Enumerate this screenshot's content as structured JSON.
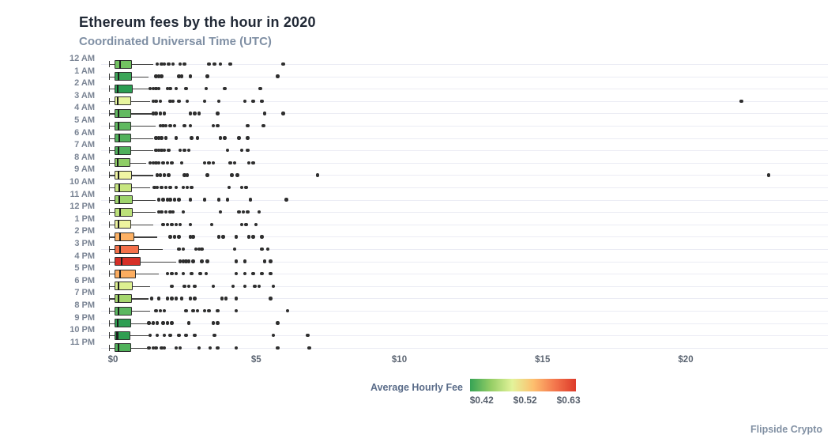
{
  "header": {
    "title": "Ethereum fees by the hour in 2020",
    "subtitle": "Coordinated Universal Time (UTC)"
  },
  "attribution": "Flipside Crypto",
  "legend": {
    "label": "Average Hourly Fee",
    "tick_labels": [
      "$0.42",
      "$0.52",
      "$0.63"
    ],
    "tick_positions_pct": [
      11,
      52,
      93
    ],
    "gradient_stops": [
      "#36a355",
      "#96ce66",
      "#e3f39a",
      "#fdbe6e",
      "#f4774d",
      "#dd3b2a"
    ]
  },
  "axes": {
    "x_ticks": [
      {
        "label": "$0",
        "value": 0
      },
      {
        "label": "$5",
        "value": 5
      },
      {
        "label": "$10",
        "value": 10
      },
      {
        "label": "$15",
        "value": 15
      },
      {
        "label": "$20",
        "value": 20
      }
    ],
    "x_unit": "USD"
  },
  "chart_data": {
    "type": "box",
    "orientation": "horizontal",
    "title": "Ethereum fees by the hour in 2020",
    "subtitle": "Coordinated Universal Time (UTC)",
    "color_encoding": "box fill encodes Average Hourly Fee, green $0.42 (low) to red $0.63 (high)",
    "x_range_dollars": [
      -0.4,
      24.9
    ],
    "grid": "horizontal",
    "rows": [
      {
        "hour": "12 AM",
        "color": "#72C261",
        "low": -0.15,
        "q1": 0.05,
        "median": 0.25,
        "q3": 0.67,
        "high": 1.4,
        "outliers": [
          1.55,
          1.7,
          1.8,
          1.95,
          2.1,
          2.35,
          2.5,
          3.35,
          3.55,
          3.75,
          4.1,
          5.95
        ]
      },
      {
        "hour": "1 AM",
        "color": "#3BA658",
        "low": -0.15,
        "q1": 0.05,
        "median": 0.2,
        "q3": 0.67,
        "high": 1.25,
        "outliers": [
          1.5,
          1.6,
          1.7,
          2.3,
          2.4,
          2.7,
          3.3,
          5.75
        ]
      },
      {
        "hour": "2 AM",
        "color": "#2A9D52",
        "low": -0.15,
        "q1": 0.05,
        "median": 0.17,
        "q3": 0.7,
        "high": 1.4,
        "outliers": [
          1.3,
          1.4,
          1.5,
          1.6,
          1.9,
          2.0,
          2.2,
          2.55,
          3.25,
          3.9,
          5.15
        ]
      },
      {
        "hour": "3 AM",
        "color": "#E7F59E",
        "low": -0.15,
        "q1": 0.05,
        "median": 0.17,
        "q3": 0.64,
        "high": 1.3,
        "outliers": [
          1.4,
          1.5,
          1.65,
          2.0,
          2.1,
          2.3,
          2.6,
          3.2,
          3.7,
          4.6,
          4.9,
          5.2,
          21.95
        ]
      },
      {
        "hour": "4 AM",
        "color": "#62BA60",
        "low": -0.15,
        "q1": 0.05,
        "median": 0.2,
        "q3": 0.64,
        "high": 1.4,
        "outliers": [
          1.4,
          1.5,
          1.65,
          1.8,
          2.7,
          2.85,
          3.0,
          3.65,
          5.3,
          5.95
        ]
      },
      {
        "hour": "5 AM",
        "color": "#5FB95F",
        "low": -0.15,
        "q1": 0.05,
        "median": 0.2,
        "q3": 0.64,
        "high": 1.5,
        "outliers": [
          1.65,
          1.75,
          1.85,
          2.0,
          2.15,
          2.5,
          2.7,
          3.5,
          3.65,
          4.7,
          5.25
        ]
      },
      {
        "hour": "6 AM",
        "color": "#52B25C",
        "low": -0.15,
        "q1": 0.05,
        "median": 0.22,
        "q3": 0.64,
        "high": 1.4,
        "outliers": [
          1.5,
          1.6,
          1.7,
          1.85,
          2.2,
          2.75,
          2.95,
          3.75,
          3.9,
          4.4,
          4.7
        ]
      },
      {
        "hour": "7 AM",
        "color": "#4FB05B",
        "low": -0.15,
        "q1": 0.05,
        "median": 0.2,
        "q3": 0.64,
        "high": 1.4,
        "outliers": [
          1.5,
          1.6,
          1.7,
          1.8,
          1.95,
          2.35,
          2.5,
          2.65,
          4.0,
          4.5,
          4.7
        ]
      },
      {
        "hour": "8 AM",
        "color": "#8FCE66",
        "low": -0.15,
        "q1": 0.05,
        "median": 0.17,
        "q3": 0.6,
        "high": 1.15,
        "outliers": [
          1.3,
          1.4,
          1.5,
          1.6,
          1.75,
          1.9,
          2.05,
          2.4,
          3.2,
          3.35,
          3.5,
          4.1,
          4.25,
          4.75,
          4.9
        ]
      },
      {
        "hour": "9 AM",
        "color": "#F0F5A3",
        "low": -0.15,
        "q1": 0.05,
        "median": 0.2,
        "q3": 0.67,
        "high": 1.4,
        "outliers": [
          1.55,
          1.65,
          1.8,
          1.95,
          2.5,
          2.6,
          3.3,
          4.15,
          4.35,
          7.15,
          22.9
        ]
      },
      {
        "hour": "10 AM",
        "color": "#C7E680",
        "low": -0.15,
        "q1": 0.05,
        "median": 0.22,
        "q3": 0.67,
        "high": 1.3,
        "outliers": [
          1.45,
          1.55,
          1.7,
          1.85,
          2.0,
          2.2,
          2.45,
          2.6,
          2.75,
          4.05,
          4.5,
          4.65
        ]
      },
      {
        "hour": "11 AM",
        "color": "#9ED46C",
        "low": -0.15,
        "q1": 0.05,
        "median": 0.22,
        "q3": 0.7,
        "high": 1.5,
        "outliers": [
          1.6,
          1.75,
          1.9,
          2.0,
          2.15,
          2.3,
          2.7,
          3.2,
          3.7,
          4.0,
          4.8,
          6.05
        ]
      },
      {
        "hour": "12 PM",
        "color": "#BCE17A",
        "low": -0.15,
        "q1": 0.05,
        "median": 0.25,
        "q3": 0.7,
        "high": 1.5,
        "outliers": [
          1.6,
          1.7,
          1.85,
          2.0,
          2.1,
          2.45,
          3.75,
          4.4,
          4.55,
          4.7,
          5.1
        ]
      },
      {
        "hour": "1 PM",
        "color": "#EEF49F",
        "low": -0.15,
        "q1": 0.05,
        "median": 0.2,
        "q3": 0.64,
        "high": 1.4,
        "outliers": [
          1.75,
          1.9,
          2.05,
          2.2,
          2.35,
          2.7,
          3.45,
          4.5,
          4.65,
          5.0
        ]
      },
      {
        "hour": "2 PM",
        "color": "#FDB164",
        "low": -0.15,
        "q1": 0.05,
        "median": 0.25,
        "q3": 0.75,
        "high": 1.55,
        "outliers": [
          2.0,
          2.15,
          2.3,
          2.7,
          2.8,
          3.7,
          3.85,
          4.3,
          4.75,
          4.9,
          5.2
        ]
      },
      {
        "hour": "3 PM",
        "color": "#F4704A",
        "low": -0.15,
        "q1": 0.05,
        "median": 0.25,
        "q3": 0.9,
        "high": 1.75,
        "outliers": [
          2.3,
          2.45,
          2.9,
          3.0,
          3.1,
          4.25,
          5.2,
          5.4
        ]
      },
      {
        "hour": "4 PM",
        "color": "#D62F27",
        "low": -0.15,
        "q1": 0.05,
        "median": 0.3,
        "q3": 0.97,
        "high": 2.2,
        "outliers": [
          2.35,
          2.45,
          2.55,
          2.65,
          2.8,
          3.1,
          3.3,
          4.3,
          4.6,
          5.3,
          5.5
        ]
      },
      {
        "hour": "5 PM",
        "color": "#FCAD60",
        "low": -0.15,
        "q1": 0.05,
        "median": 0.25,
        "q3": 0.8,
        "high": 1.6,
        "outliers": [
          1.9,
          2.05,
          2.2,
          2.45,
          2.75,
          3.05,
          3.25,
          4.3,
          4.6,
          4.9,
          5.2,
          5.5
        ]
      },
      {
        "hour": "6 PM",
        "color": "#DDF091",
        "low": -0.15,
        "q1": 0.05,
        "median": 0.2,
        "q3": 0.7,
        "high": 1.3,
        "outliers": [
          2.05,
          2.5,
          2.65,
          2.85,
          3.5,
          4.2,
          4.6,
          4.95,
          5.1,
          5.6
        ]
      },
      {
        "hour": "7 PM",
        "color": "#A5D76E",
        "low": -0.15,
        "q1": 0.05,
        "median": 0.2,
        "q3": 0.67,
        "high": 1.25,
        "outliers": [
          1.35,
          1.6,
          1.9,
          2.05,
          2.2,
          2.4,
          2.7,
          2.85,
          3.8,
          3.95,
          4.3,
          5.5
        ]
      },
      {
        "hour": "8 PM",
        "color": "#5BB860",
        "low": -0.15,
        "q1": 0.05,
        "median": 0.2,
        "q3": 0.67,
        "high": 1.3,
        "outliers": [
          1.5,
          1.65,
          1.8,
          2.55,
          2.8,
          2.95,
          3.2,
          3.35,
          3.65,
          4.3,
          6.1
        ]
      },
      {
        "hour": "9 PM",
        "color": "#2E9E53",
        "low": -0.15,
        "q1": 0.05,
        "median": 0.17,
        "q3": 0.64,
        "high": 1.4,
        "outliers": [
          1.25,
          1.4,
          1.55,
          1.75,
          1.9,
          2.05,
          2.65,
          3.5,
          3.65,
          5.75
        ]
      },
      {
        "hour": "10 PM",
        "color": "#2F9E51",
        "low": -0.15,
        "q1": 0.05,
        "median": 0.15,
        "q3": 0.6,
        "high": 1.25,
        "outliers": [
          1.3,
          1.55,
          1.8,
          2.0,
          2.3,
          2.55,
          2.85,
          3.55,
          5.6,
          6.8
        ]
      },
      {
        "hour": "11 PM",
        "color": "#51B25B",
        "low": -0.15,
        "q1": 0.05,
        "median": 0.2,
        "q3": 0.64,
        "high": 1.2,
        "outliers": [
          1.25,
          1.4,
          1.5,
          1.7,
          1.8,
          2.2,
          2.35,
          3.0,
          3.4,
          3.65,
          4.3,
          5.75,
          6.85
        ]
      }
    ]
  }
}
